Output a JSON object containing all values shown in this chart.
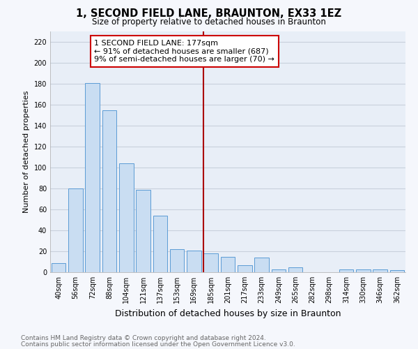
{
  "title": "1, SECOND FIELD LANE, BRAUNTON, EX33 1EZ",
  "subtitle": "Size of property relative to detached houses in Braunton",
  "xlabel": "Distribution of detached houses by size in Braunton",
  "ylabel": "Number of detached properties",
  "footnote1": "Contains HM Land Registry data © Crown copyright and database right 2024.",
  "footnote2": "Contains public sector information licensed under the Open Government Licence v3.0.",
  "categories": [
    "40sqm",
    "56sqm",
    "72sqm",
    "88sqm",
    "104sqm",
    "121sqm",
    "137sqm",
    "153sqm",
    "169sqm",
    "185sqm",
    "201sqm",
    "217sqm",
    "233sqm",
    "249sqm",
    "265sqm",
    "282sqm",
    "298sqm",
    "314sqm",
    "330sqm",
    "346sqm",
    "362sqm"
  ],
  "values": [
    9,
    80,
    181,
    155,
    104,
    79,
    54,
    22,
    21,
    18,
    15,
    7,
    14,
    3,
    5,
    0,
    0,
    3,
    3,
    3,
    2
  ],
  "bar_color": "#c9ddf2",
  "bar_edge_color": "#5b9bd5",
  "vline_x": 8.55,
  "vline_color": "#aa0000",
  "annotation_line1": "1 SECOND FIELD LANE: 177sqm",
  "annotation_line2": "← 91% of detached houses are smaller (687)",
  "annotation_line3": "9% of semi-detached houses are larger (70) →",
  "annotation_box_color": "#ffffff",
  "annotation_box_edge": "#cc0000",
  "ylim": [
    0,
    230
  ],
  "yticks": [
    0,
    20,
    40,
    60,
    80,
    100,
    120,
    140,
    160,
    180,
    200,
    220
  ],
  "background_color": "#e8eef7",
  "grid_color": "#c8d0dc",
  "title_fontsize": 10.5,
  "subtitle_fontsize": 8.5,
  "ylabel_fontsize": 8,
  "xlabel_fontsize": 9,
  "tick_fontsize": 7,
  "annotation_fontsize": 8,
  "footnote_fontsize": 6.5,
  "fig_facecolor": "#f5f7fc"
}
